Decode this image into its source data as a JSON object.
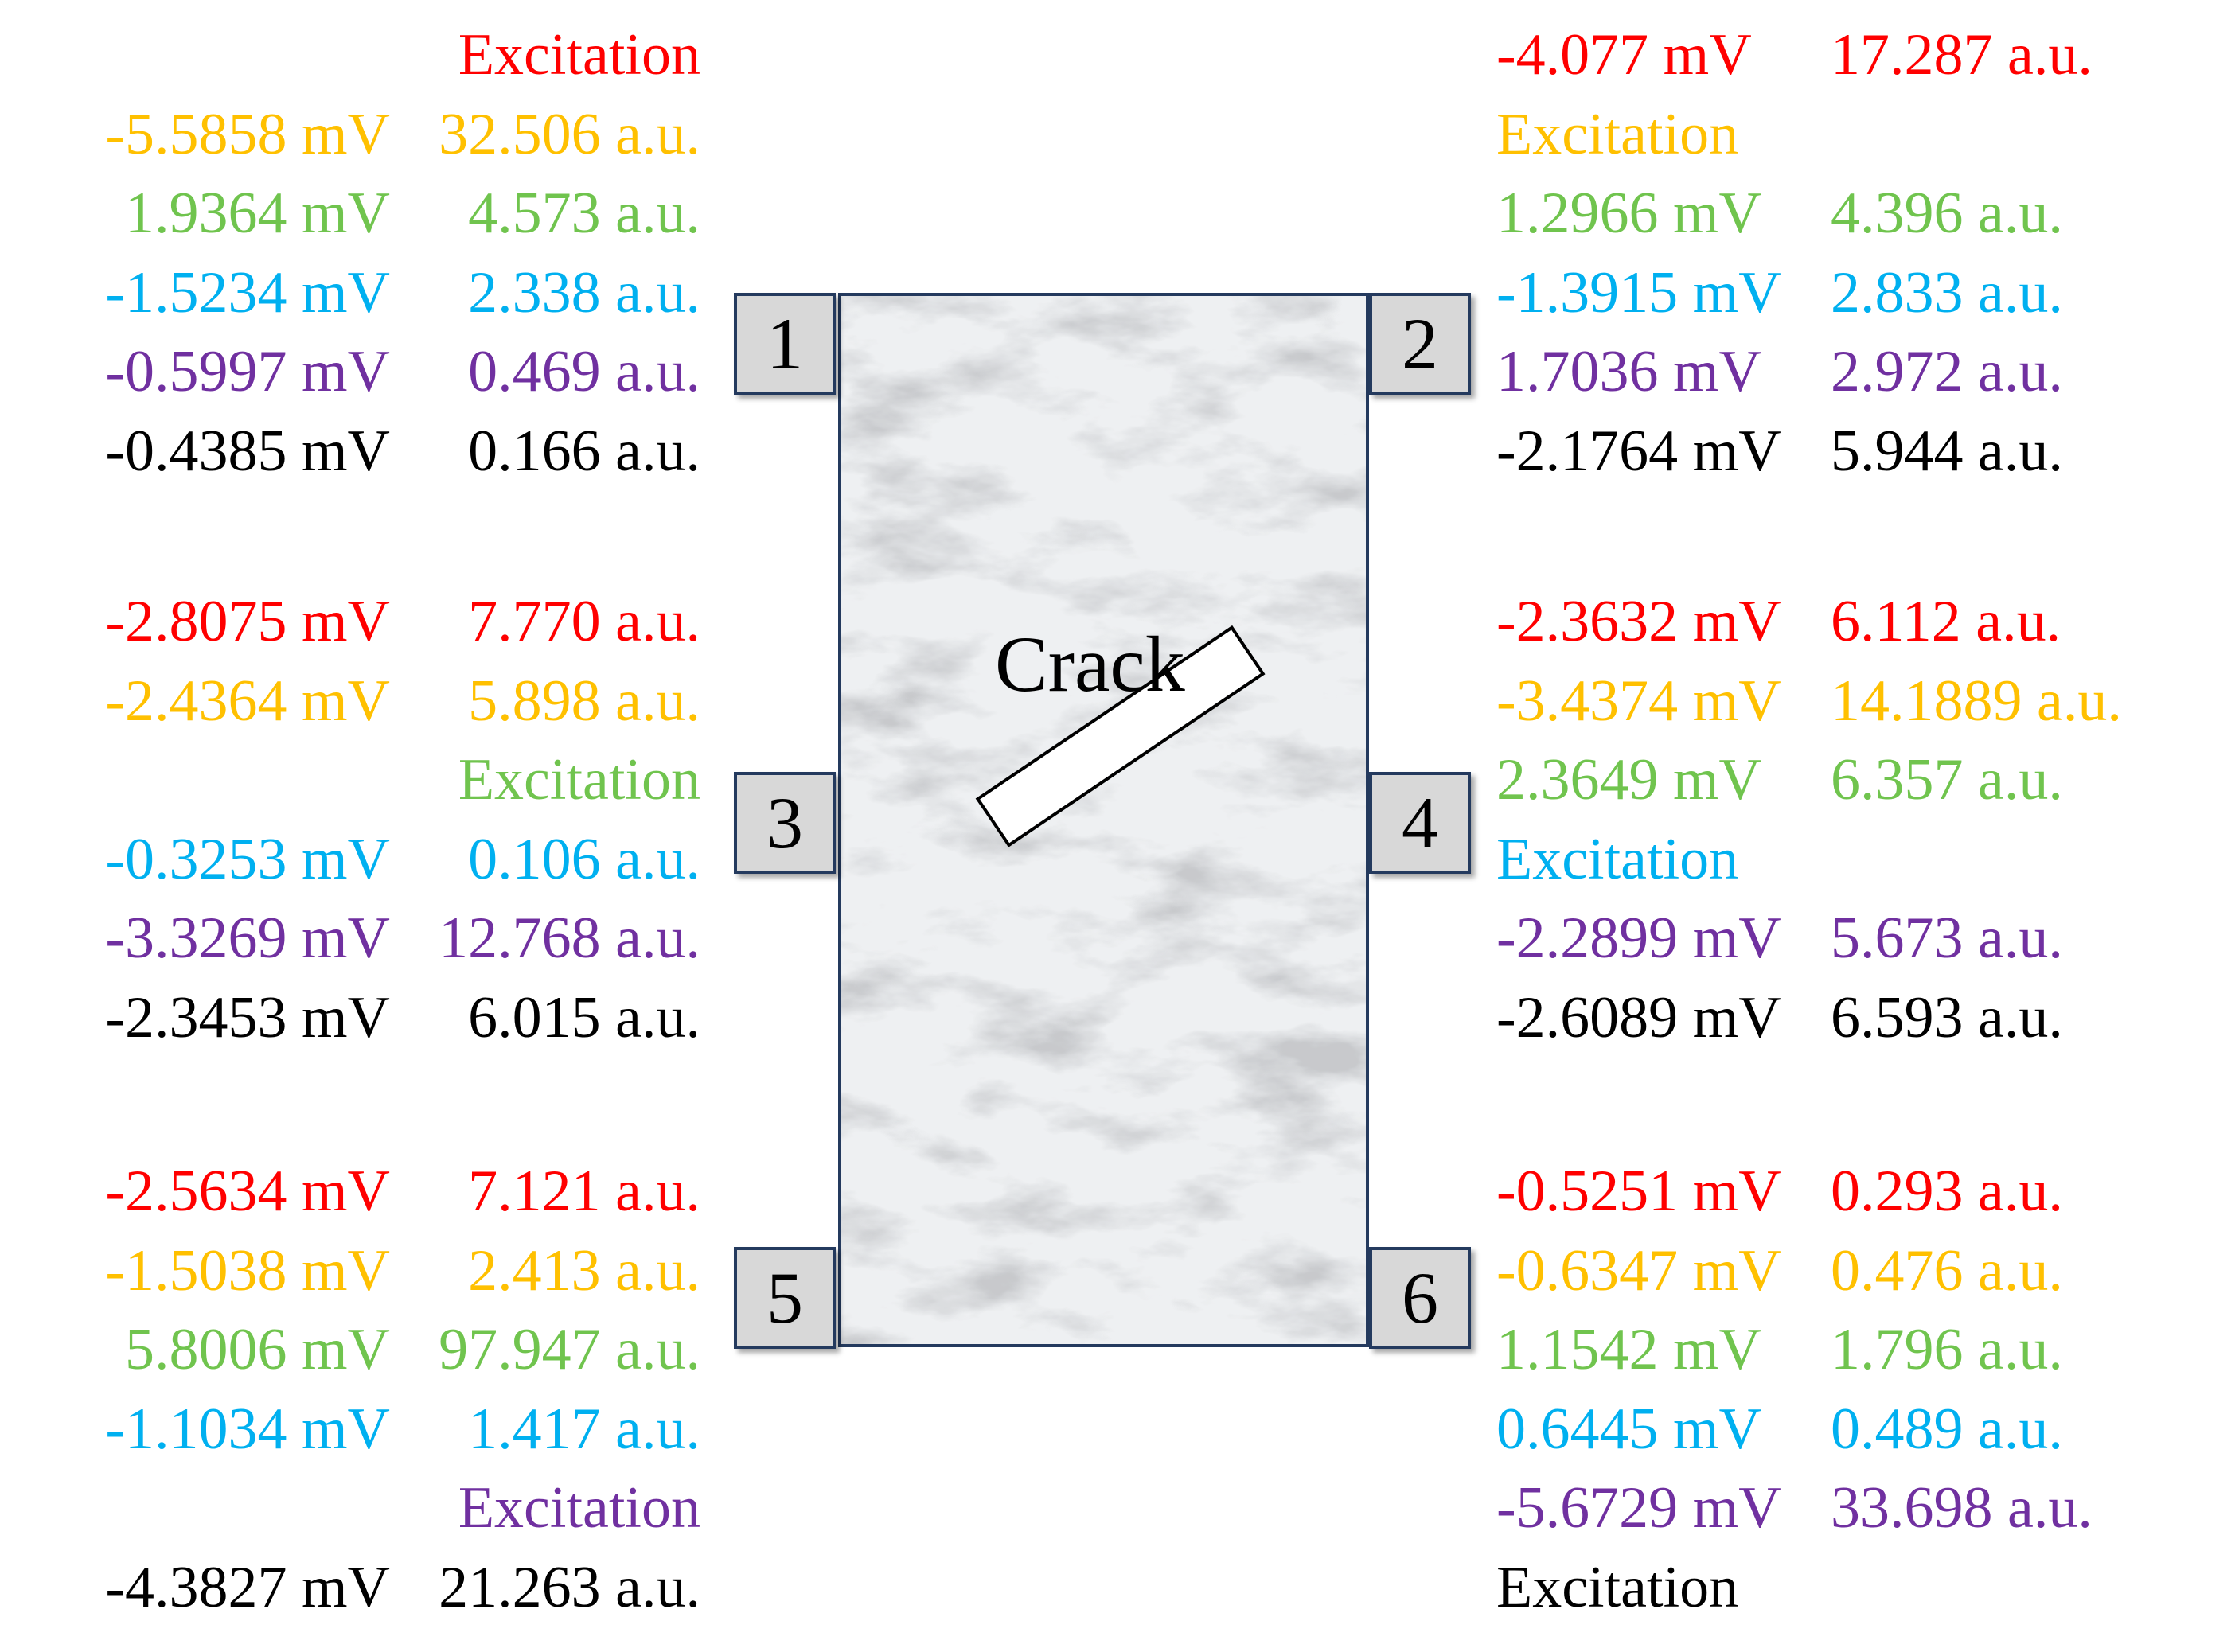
{
  "colors": {
    "red": "#ff0000",
    "orange": "#ffc000",
    "green": "#70c44e",
    "blue": "#00b0f0",
    "purple": "#7030a0",
    "black": "#000000"
  },
  "crack_label": "Crack",
  "sensors": [
    {
      "number": "1",
      "rows": [
        {
          "color": "red",
          "mv": "",
          "au": "",
          "excitation": "Excitation"
        },
        {
          "color": "orange",
          "mv": "-5.5858 mV",
          "au": "32.506 a.u.",
          "excitation": ""
        },
        {
          "color": "green",
          "mv": "1.9364 mV",
          "au": "4.573 a.u.",
          "excitation": ""
        },
        {
          "color": "blue",
          "mv": "-1.5234 mV",
          "au": "2.338 a.u.",
          "excitation": ""
        },
        {
          "color": "purple",
          "mv": "-0.5997 mV",
          "au": "0.469 a.u.",
          "excitation": ""
        },
        {
          "color": "black",
          "mv": "-0.4385 mV",
          "au": "0.166 a.u.",
          "excitation": ""
        }
      ]
    },
    {
      "number": "2",
      "rows": [
        {
          "color": "red",
          "mv": "-4.077 mV",
          "au": "17.287 a.u.",
          "excitation": ""
        },
        {
          "color": "orange",
          "mv": "",
          "au": "",
          "excitation": "Excitation"
        },
        {
          "color": "green",
          "mv": "1.2966 mV",
          "au": "4.396 a.u.",
          "excitation": ""
        },
        {
          "color": "blue",
          "mv": "-1.3915 mV",
          "au": "2.833 a.u.",
          "excitation": ""
        },
        {
          "color": "purple",
          "mv": "1.7036 mV",
          "au": "2.972 a.u.",
          "excitation": ""
        },
        {
          "color": "black",
          "mv": "-2.1764 mV",
          "au": "5.944 a.u.",
          "excitation": ""
        }
      ]
    },
    {
      "number": "3",
      "rows": [
        {
          "color": "red",
          "mv": "-2.8075 mV",
          "au": "7.770 a.u.",
          "excitation": ""
        },
        {
          "color": "orange",
          "mv": "-2.4364 mV",
          "au": "5.898 a.u.",
          "excitation": ""
        },
        {
          "color": "green",
          "mv": "",
          "au": "",
          "excitation": "Excitation"
        },
        {
          "color": "blue",
          "mv": "-0.3253 mV",
          "au": "0.106 a.u.",
          "excitation": ""
        },
        {
          "color": "purple",
          "mv": "-3.3269 mV",
          "au": "12.768 a.u.",
          "excitation": ""
        },
        {
          "color": "black",
          "mv": "-2.3453 mV",
          "au": "6.015 a.u.",
          "excitation": ""
        }
      ]
    },
    {
      "number": "4",
      "rows": [
        {
          "color": "red",
          "mv": "-2.3632 mV",
          "au": "6.112 a.u.",
          "excitation": ""
        },
        {
          "color": "orange",
          "mv": "-3.4374 mV",
          "au": "14.1889 a.u.",
          "excitation": ""
        },
        {
          "color": "green",
          "mv": "2.3649 mV",
          "au": "6.357 a.u.",
          "excitation": ""
        },
        {
          "color": "blue",
          "mv": "",
          "au": "",
          "excitation": "Excitation"
        },
        {
          "color": "purple",
          "mv": "-2.2899 mV",
          "au": "5.673 a.u.",
          "excitation": ""
        },
        {
          "color": "black",
          "mv": "-2.6089 mV",
          "au": "6.593 a.u.",
          "excitation": ""
        }
      ]
    },
    {
      "number": "5",
      "rows": [
        {
          "color": "red",
          "mv": "-2.5634 mV",
          "au": "7.121 a.u.",
          "excitation": ""
        },
        {
          "color": "orange",
          "mv": "-1.5038 mV",
          "au": "2.413 a.u.",
          "excitation": ""
        },
        {
          "color": "green",
          "mv": "5.8006 mV",
          "au": "97.947 a.u.",
          "excitation": ""
        },
        {
          "color": "blue",
          "mv": "-1.1034 mV",
          "au": "1.417 a.u.",
          "excitation": ""
        },
        {
          "color": "purple",
          "mv": "",
          "au": "",
          "excitation": "Excitation"
        },
        {
          "color": "black",
          "mv": "-4.3827 mV",
          "au": "21.263 a.u.",
          "excitation": ""
        }
      ]
    },
    {
      "number": "6",
      "rows": [
        {
          "color": "red",
          "mv": "-0.5251 mV",
          "au": "0.293 a.u.",
          "excitation": ""
        },
        {
          "color": "orange",
          "mv": "-0.6347 mV",
          "au": "0.476 a.u.",
          "excitation": ""
        },
        {
          "color": "green",
          "mv": "1.1542 mV",
          "au": "1.796 a.u.",
          "excitation": ""
        },
        {
          "color": "blue",
          "mv": "0.6445 mV",
          "au": "0.489 a.u.",
          "excitation": ""
        },
        {
          "color": "purple",
          "mv": "-5.6729 mV",
          "au": "33.698 a.u.",
          "excitation": ""
        },
        {
          "color": "black",
          "mv": "",
          "au": "",
          "excitation": "Excitation"
        }
      ]
    }
  ]
}
